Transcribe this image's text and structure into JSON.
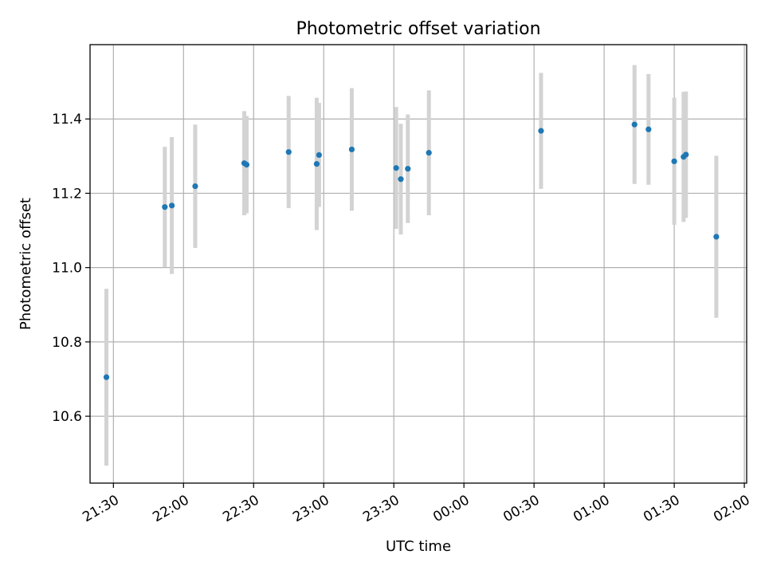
{
  "chart_data": {
    "type": "scatter",
    "title": "Photometric offset variation",
    "xlabel": "UTC time",
    "ylabel": "Photometric offset",
    "grid": true,
    "legend": "none",
    "x_unit": "UTC time (HH:MM)",
    "xlim": [
      "21:20",
      "02:01"
    ],
    "ylim": [
      10.42,
      11.6
    ],
    "x_ticks": [
      "21:30",
      "22:00",
      "22:30",
      "23:00",
      "23:30",
      "00:00",
      "00:30",
      "01:00",
      "01:30",
      "02:00"
    ],
    "y_ticks": [
      "10.6",
      "10.8",
      "11.0",
      "11.2",
      "11.4"
    ],
    "colors": {
      "point": "#1f77b4",
      "errorbar": "#d3d3d3",
      "grid": "#b0b0b0"
    },
    "series": [
      {
        "points": [
          {
            "x": "21:27",
            "y": 10.705,
            "err": 0.238
          },
          {
            "x": "21:52",
            "y": 11.163,
            "err": 0.162
          },
          {
            "x": "21:55",
            "y": 11.167,
            "err": 0.184
          },
          {
            "x": "22:05",
            "y": 11.219,
            "err": 0.166
          },
          {
            "x": "22:26",
            "y": 11.281,
            "err": 0.14
          },
          {
            "x": "22:27",
            "y": 11.277,
            "err": 0.131
          },
          {
            "x": "22:45",
            "y": 11.311,
            "err": 0.151
          },
          {
            "x": "22:57",
            "y": 11.279,
            "err": 0.178
          },
          {
            "x": "22:58",
            "y": 11.303,
            "err": 0.14
          },
          {
            "x": "23:12",
            "y": 11.318,
            "err": 0.165
          },
          {
            "x": "23:31",
            "y": 11.268,
            "err": 0.164
          },
          {
            "x": "23:33",
            "y": 11.238,
            "err": 0.149
          },
          {
            "x": "23:36",
            "y": 11.266,
            "err": 0.146
          },
          {
            "x": "23:45",
            "y": 11.309,
            "err": 0.168
          },
          {
            "x": "00:33",
            "y": 11.368,
            "err": 0.156
          },
          {
            "x": "01:13",
            "y": 11.385,
            "err": 0.16
          },
          {
            "x": "01:19",
            "y": 11.372,
            "err": 0.149
          },
          {
            "x": "01:30",
            "y": 11.286,
            "err": 0.171
          },
          {
            "x": "01:34",
            "y": 11.298,
            "err": 0.175
          },
          {
            "x": "01:35",
            "y": 11.304,
            "err": 0.17
          },
          {
            "x": "01:48",
            "y": 11.083,
            "err": 0.218
          }
        ]
      }
    ]
  }
}
